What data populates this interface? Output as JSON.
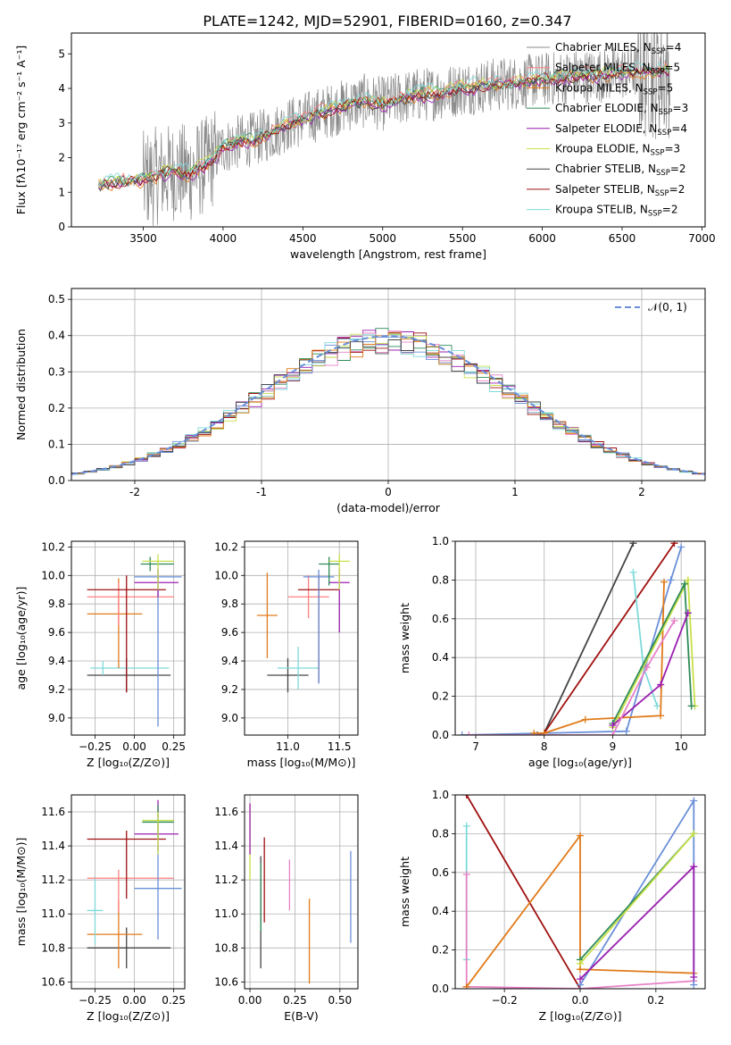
{
  "figure_title": "PLATE=1242, MJD=52901, FIBERID=0160, z=0.347",
  "colors": {
    "chabrier_miles": "#888888",
    "salpeter_miles": "#ff7f7f",
    "kroupa_miles": "#e07b1a",
    "chabrier_elodie": "#2e8b57",
    "salpeter_elodie": "#9b1fb0",
    "kroupa_elodie": "#c8e04a",
    "chabrier_stelib": "#444444",
    "salpeter_stelib": "#a01010",
    "kroupa_stelib": "#7fdada",
    "miles_pink": "#e882c8",
    "blue": "#6a8fd8",
    "green_yellow": "#a8d84a",
    "normal_curve": "#6a8fd8",
    "grid": "#b0b0b0"
  },
  "chart_data": [
    {
      "id": "spectrum",
      "type": "line",
      "xlabel": "wavelength [Angstrom, rest frame]",
      "ylabel": "Flux [fλ10⁻¹⁷ erg cm⁻² s⁻¹ A⁻¹]",
      "xlim": [
        3050,
        7020
      ],
      "ylim": [
        0,
        5.6
      ],
      "xticks": [
        3500,
        4000,
        4500,
        5000,
        5500,
        6000,
        6500,
        7000
      ],
      "yticks": [
        0,
        1,
        2,
        3,
        4,
        5
      ],
      "grid": false,
      "legend_position": "top-right",
      "legend": [
        {
          "label": "Chabrier MILES, N",
          "sub": "SSP",
          "suffix": "=4",
          "color": "#888888"
        },
        {
          "label": "Salpeter MILES, N",
          "sub": "SSP",
          "suffix": "=5",
          "color": "#ff7f7f"
        },
        {
          "label": "Kroupa MILES, N",
          "sub": "SSP",
          "suffix": "=5",
          "color": "#e07b1a"
        },
        {
          "label": "Chabrier ELODIE, N",
          "sub": "SSP",
          "suffix": "=3",
          "color": "#2e8b57"
        },
        {
          "label": "Salpeter ELODIE, N",
          "sub": "SSP",
          "suffix": "=4",
          "color": "#9b1fb0"
        },
        {
          "label": "Kroupa ELODIE, N",
          "sub": "SSP",
          "suffix": "=3",
          "color": "#c8e04a"
        },
        {
          "label": "Chabrier STELIB, N",
          "sub": "SSP",
          "suffix": "=2",
          "color": "#444444"
        },
        {
          "label": "Salpeter STELIB, N",
          "sub": "SSP",
          "suffix": "=2",
          "color": "#a01010"
        },
        {
          "label": "Kroupa STELIB, N",
          "sub": "SSP",
          "suffix": "=2",
          "color": "#7fdada"
        }
      ],
      "model_continuum": {
        "x": [
          3220,
          3300,
          3400,
          3500,
          3600,
          3700,
          3800,
          3900,
          4000,
          4100,
          4200,
          4300,
          4400,
          4500,
          4600,
          4700,
          4800,
          4900,
          5000,
          5100,
          5200,
          5300,
          5400,
          5500,
          5600,
          5700,
          5800,
          5900,
          6000,
          6100,
          6200,
          6300,
          6400,
          6500,
          6600,
          6700,
          6800
        ],
        "y": [
          1.2,
          1.25,
          1.3,
          1.35,
          1.5,
          1.6,
          1.55,
          1.8,
          2.3,
          2.45,
          2.55,
          2.7,
          2.95,
          3.1,
          3.25,
          3.4,
          3.55,
          3.65,
          3.55,
          3.7,
          3.8,
          3.85,
          3.9,
          4.0,
          4.05,
          4.1,
          4.15,
          4.2,
          4.25,
          4.3,
          4.35,
          4.35,
          4.4,
          4.45,
          4.5,
          4.5,
          4.55
        ]
      }
    },
    {
      "id": "residuals",
      "type": "step",
      "xlabel": "(data-model)/error",
      "ylabel": "Normed distribution",
      "xlim": [
        -2.5,
        2.5
      ],
      "ylim": [
        0,
        0.53
      ],
      "xticks": [
        -2,
        -1,
        0,
        1,
        2
      ],
      "yticks": [
        0.0,
        0.1,
        0.2,
        0.3,
        0.4,
        0.5
      ],
      "grid": true,
      "legend_position": "top-right",
      "legend": [
        {
          "label": "𝒩(0, 1)",
          "color": "#6a8fd8",
          "style": "dashed"
        }
      ],
      "bin_width": 0.1,
      "bins_start": -2.5
    },
    {
      "id": "age_vs_Z",
      "type": "errorbar",
      "xlabel": "Z [log₁₀(Z/Z⊙)]",
      "ylabel": "age  [log₁₀(age/yr)]",
      "xlim": [
        -0.4,
        0.32
      ],
      "ylim": [
        8.88,
        10.24
      ],
      "xticks": [
        -0.25,
        0.0,
        0.25
      ],
      "xticklabels": [
        "−0.25",
        "0.00",
        "0.25"
      ],
      "yticks": [
        9.0,
        9.2,
        9.4,
        9.6,
        9.8,
        10.0,
        10.2
      ],
      "grid": true,
      "points": [
        {
          "x": -0.05,
          "y": 9.3,
          "xerr": [
            0.25,
            0.28
          ],
          "yerr": [
            0.12,
            0.12
          ],
          "color": "#444444"
        },
        {
          "x": -0.2,
          "y": 9.35,
          "xerr": [
            0.08,
            0.42
          ],
          "yerr": [
            0.05,
            0.05
          ],
          "color": "#7fdada"
        },
        {
          "x": -0.1,
          "y": 9.73,
          "xerr": [
            0.2,
            0.15
          ],
          "yerr": [
            0.38,
            0.25
          ],
          "color": "#e07b1a"
        },
        {
          "x": -0.1,
          "y": 9.85,
          "xerr": [
            0.2,
            0.35
          ],
          "yerr": [
            0.2,
            0.1
          ],
          "color": "#ff7f7f"
        },
        {
          "x": -0.05,
          "y": 9.9,
          "xerr": [
            0.25,
            0.25
          ],
          "yerr": [
            0.72,
            0.1
          ],
          "color": "#a01010"
        },
        {
          "x": 0.15,
          "y": 9.99,
          "xerr": [
            0.15,
            0.15
          ],
          "yerr": [
            1.05,
            0.05
          ],
          "color": "#6a8fd8"
        },
        {
          "x": 0.15,
          "y": 9.95,
          "xerr": [
            0.15,
            0.13
          ],
          "yerr": [
            0.1,
            0.1
          ],
          "color": "#9b1fb0"
        },
        {
          "x": 0.1,
          "y": 10.08,
          "xerr": [
            0.06,
            0.15
          ],
          "yerr": [
            0.05,
            0.05
          ],
          "color": "#2e8b57"
        },
        {
          "x": 0.15,
          "y": 10.1,
          "xerr": [
            0.1,
            0.1
          ],
          "yerr": [
            0.2,
            0.05
          ],
          "color": "#c8e04a"
        }
      ]
    },
    {
      "id": "age_vs_mass",
      "type": "errorbar",
      "xlabel": "mass [log₁₀(M/M⊙)]",
      "xlim": [
        10.58,
        11.68
      ],
      "ylim": [
        8.88,
        10.24
      ],
      "xticks": [
        11.0,
        11.5
      ],
      "xticklabels": [
        "11.0",
        "11.5"
      ],
      "yticks": [
        9.0,
        9.2,
        9.4,
        9.6,
        9.8,
        10.0,
        10.2
      ],
      "grid": true,
      "points": [
        {
          "x": 11.0,
          "y": 9.3,
          "xerr": [
            0.2,
            0.2
          ],
          "yerr": [
            0.12,
            0.12
          ],
          "color": "#444444"
        },
        {
          "x": 11.1,
          "y": 9.35,
          "xerr": [
            0.2,
            0.2
          ],
          "yerr": [
            0.15,
            0.15
          ],
          "color": "#7fdada"
        },
        {
          "x": 10.8,
          "y": 9.72,
          "xerr": [
            0.1,
            0.1
          ],
          "yerr": [
            0.3,
            0.3
          ],
          "color": "#e07b1a"
        },
        {
          "x": 11.2,
          "y": 9.85,
          "xerr": [
            0.2,
            0.2
          ],
          "yerr": [
            0.15,
            0.15
          ],
          "color": "#ff7f7f"
        },
        {
          "x": 11.3,
          "y": 9.9,
          "xerr": [
            0.2,
            0.2
          ],
          "yerr": [
            0.65,
            0.1
          ],
          "color": "#a01010"
        },
        {
          "x": 11.3,
          "y": 9.99,
          "xerr": [
            0.15,
            0.15
          ],
          "yerr": [
            0.75,
            0.05
          ],
          "color": "#6a8fd8"
        },
        {
          "x": 11.5,
          "y": 9.95,
          "xerr": [
            0.1,
            0.1
          ],
          "yerr": [
            0.35,
            0.1
          ],
          "color": "#9b1fb0"
        },
        {
          "x": 11.4,
          "y": 10.08,
          "xerr": [
            0.1,
            0.1
          ],
          "yerr": [
            0.15,
            0.05
          ],
          "color": "#2e8b57"
        },
        {
          "x": 11.5,
          "y": 10.1,
          "xerr": [
            0.1,
            0.1
          ],
          "yerr": [
            0.2,
            0.05
          ],
          "color": "#c8e04a"
        }
      ]
    },
    {
      "id": "weight_vs_age",
      "type": "line",
      "xlabel": "age  [log₁₀(age/yr)]",
      "ylabel": "mass weight",
      "xlim": [
        6.7,
        10.35
      ],
      "ylim": [
        0,
        1.0
      ],
      "xticks": [
        7,
        8,
        9,
        10
      ],
      "yticks": [
        0.0,
        0.2,
        0.4,
        0.6,
        0.8,
        1.0
      ],
      "grid": true,
      "series": [
        {
          "color": "#444444",
          "x": [
            7.9,
            8.0,
            9.3
          ],
          "y": [
            0.0,
            0.01,
            0.99
          ]
        },
        {
          "color": "#a01010",
          "x": [
            8.0,
            9.9
          ],
          "y": [
            0.01,
            0.99
          ]
        },
        {
          "color": "#6a8fd8",
          "x": [
            6.8,
            9.2,
            9.85,
            10.0
          ],
          "y": [
            0.0,
            0.02,
            0.8,
            0.97
          ]
        },
        {
          "color": "#7fdada",
          "x": [
            9.3,
            9.45,
            9.65
          ],
          "y": [
            0.84,
            0.35,
            0.15
          ]
        },
        {
          "color": "#e07b1a",
          "x": [
            7.85,
            8.0,
            8.6,
            9.7,
            9.75
          ],
          "y": [
            0.01,
            0.01,
            0.08,
            0.1,
            0.79
          ]
        },
        {
          "color": "#c8e04a",
          "x": [
            9.0,
            10.1,
            10.2
          ],
          "y": [
            0.04,
            0.8,
            0.15
          ]
        },
        {
          "color": "#2e8b57",
          "x": [
            9.0,
            10.05,
            10.15
          ],
          "y": [
            0.06,
            0.78,
            0.15
          ]
        },
        {
          "color": "#9b1fb0",
          "x": [
            9.0,
            9.7,
            10.1
          ],
          "y": [
            0.05,
            0.26,
            0.63
          ]
        },
        {
          "color": "#e882c8",
          "x": [
            6.9,
            9.0,
            9.5,
            9.9
          ],
          "y": [
            0.0,
            0.0,
            0.35,
            0.59
          ]
        }
      ]
    },
    {
      "id": "mass_vs_Z",
      "type": "errorbar",
      "xlabel": "Z [log₁₀(Z/Z⊙)]",
      "ylabel": "mass [log₁₀(M/M⊙)]",
      "xlim": [
        -0.4,
        0.32
      ],
      "ylim": [
        10.56,
        11.7
      ],
      "xticks": [
        -0.25,
        0.0,
        0.25
      ],
      "xticklabels": [
        "−0.25",
        "0.00",
        "0.25"
      ],
      "yticks": [
        10.6,
        10.8,
        11.0,
        11.2,
        11.4,
        11.6
      ],
      "grid": true,
      "points": [
        {
          "x": -0.05,
          "y": 10.8,
          "xerr": [
            0.25,
            0.28
          ],
          "yerr": [
            0.12,
            0.12
          ],
          "color": "#444444"
        },
        {
          "x": -0.1,
          "y": 10.88,
          "xerr": [
            0.2,
            0.15
          ],
          "yerr": [
            0.2,
            0.2
          ],
          "color": "#e07b1a"
        },
        {
          "x": -0.25,
          "y": 11.02,
          "xerr": [
            0.05,
            0.05
          ],
          "yerr": [
            0.2,
            0.2
          ],
          "color": "#7fdada"
        },
        {
          "x": -0.1,
          "y": 11.21,
          "xerr": [
            0.2,
            0.35
          ],
          "yerr": [
            0.2,
            0.05
          ],
          "color": "#ff7f7f"
        },
        {
          "x": -0.05,
          "y": 11.44,
          "xerr": [
            0.25,
            0.25
          ],
          "yerr": [
            0.35,
            0.05
          ],
          "color": "#a01010"
        },
        {
          "x": 0.15,
          "y": 11.15,
          "xerr": [
            0.15,
            0.15
          ],
          "yerr": [
            0.3,
            0.25
          ],
          "color": "#6a8fd8"
        },
        {
          "x": 0.15,
          "y": 11.47,
          "xerr": [
            0.15,
            0.13
          ],
          "yerr": [
            0.1,
            0.2
          ],
          "color": "#9b1fb0"
        },
        {
          "x": 0.15,
          "y": 11.54,
          "xerr": [
            0.1,
            0.1
          ],
          "yerr": [
            0.1,
            0.1
          ],
          "color": "#2e8b57"
        },
        {
          "x": 0.15,
          "y": 11.55,
          "xerr": [
            0.1,
            0.1
          ],
          "yerr": [
            0.2,
            0.05
          ],
          "color": "#c8e04a"
        }
      ]
    },
    {
      "id": "mass_vs_ebv",
      "type": "errorbar",
      "xlabel": "E(B-V)",
      "xlim": [
        -0.03,
        0.6
      ],
      "ylim": [
        10.56,
        11.7
      ],
      "xticks": [
        0.0,
        0.25,
        0.5
      ],
      "xticklabels": [
        "0.00",
        "0.25",
        "0.50"
      ],
      "yticks": [
        10.6,
        10.8,
        11.0,
        11.2,
        11.4,
        11.6
      ],
      "grid": true,
      "points": [
        {
          "x": 0.06,
          "y": 11.0,
          "yerr": [
            0.32,
            0.34
          ],
          "color": "#444444"
        },
        {
          "x": 0.08,
          "y": 11.2,
          "yerr": [
            0.25,
            0.25
          ],
          "color": "#a01010"
        },
        {
          "x": 0.22,
          "y": 11.17,
          "yerr": [
            0.15,
            0.15
          ],
          "color": "#e882c8"
        },
        {
          "x": 0.33,
          "y": 10.84,
          "yerr": [
            0.25,
            0.25
          ],
          "color": "#e07b1a"
        },
        {
          "x": 0.56,
          "y": 11.1,
          "yerr": [
            0.27,
            0.27
          ],
          "color": "#6a8fd8"
        },
        {
          "x": 0.06,
          "y": 11.1,
          "yerr": [
            0.2,
            0.2
          ],
          "color": "#2e8b57"
        },
        {
          "x": 0.0,
          "y": 11.45,
          "yerr": [
            0.25,
            0.2
          ],
          "color": "#c8e04a"
        },
        {
          "x": 0.0,
          "y": 11.5,
          "yerr": [
            0.15,
            0.15
          ],
          "color": "#9b1fb0"
        }
      ]
    },
    {
      "id": "weight_vs_Z",
      "type": "line",
      "xlabel": "Z [log₁₀(Z/Z⊙)]",
      "ylabel": "mass weight",
      "xlim": [
        -0.33,
        0.33
      ],
      "ylim": [
        0,
        1.0
      ],
      "xticks": [
        -0.2,
        0.0,
        0.2
      ],
      "xticklabels": [
        "−0.2",
        "0.0",
        "0.2"
      ],
      "yticks": [
        0.0,
        0.2,
        0.4,
        0.6,
        0.8,
        1.0
      ],
      "grid": true,
      "series": [
        {
          "color": "#a01010",
          "x": [
            -0.3,
            0.0
          ],
          "y": [
            1.0,
            0.0
          ]
        },
        {
          "color": "#7fdada",
          "x": [
            -0.3,
            -0.3
          ],
          "y": [
            0.84,
            0.15
          ]
        },
        {
          "color": "#e882c8",
          "x": [
            -0.3,
            -0.3,
            0.0,
            0.3
          ],
          "y": [
            0.59,
            0.01,
            0.0,
            0.04
          ]
        },
        {
          "color": "#e07b1a",
          "x": [
            -0.3,
            0.0,
            0.0,
            0.3
          ],
          "y": [
            0.01,
            0.79,
            0.1,
            0.08
          ]
        },
        {
          "color": "#6a8fd8",
          "x": [
            0.0,
            0.3,
            0.3
          ],
          "y": [
            0.02,
            0.97,
            0.02
          ]
        },
        {
          "color": "#2e8b57",
          "x": [
            0.0,
            0.3
          ],
          "y": [
            0.15,
            0.8
          ]
        },
        {
          "color": "#c8e04a",
          "x": [
            0.0,
            0.3
          ],
          "y": [
            0.13,
            0.8
          ]
        },
        {
          "color": "#9b1fb0",
          "x": [
            0.0,
            0.3,
            0.3
          ],
          "y": [
            0.05,
            0.63,
            0.06
          ]
        }
      ]
    }
  ]
}
